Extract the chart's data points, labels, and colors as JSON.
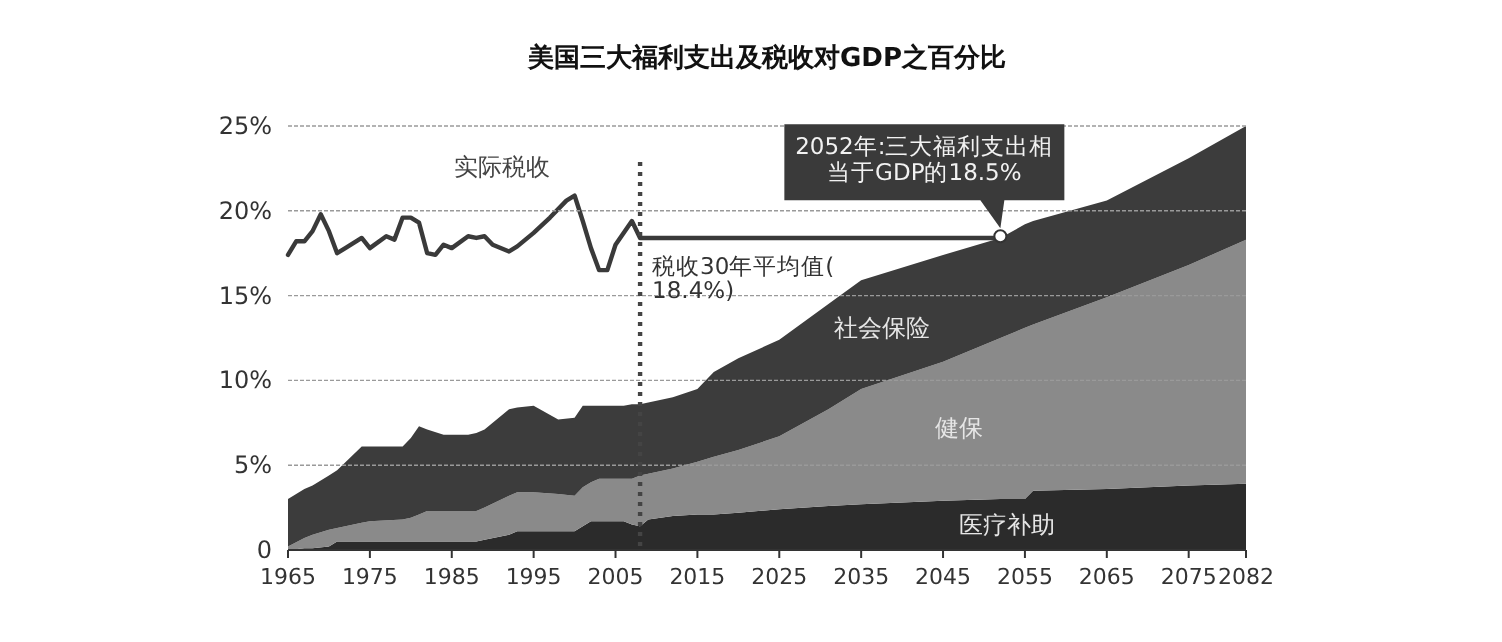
{
  "chart_data": {
    "type": "area",
    "title": "美国三大福利支出及税收对GDP之百分比",
    "x": [
      1965,
      1967,
      1968,
      1970,
      1971,
      1974,
      1975,
      1979,
      1980,
      1981,
      1982,
      1984,
      1987,
      1988,
      1989,
      1992,
      1993,
      1995,
      1998,
      2000,
      2001,
      2002,
      2003,
      2006,
      2007,
      2008,
      2009,
      2012,
      2015,
      2017,
      2020,
      2025,
      2031,
      2035,
      2045,
      2052,
      2055,
      2056,
      2065,
      2075,
      2082
    ],
    "stacked": true,
    "series": [
      {
        "name": "医疗补助",
        "color": "#2b2b2b",
        "values": [
          0,
          0.1,
          0.1,
          0.2,
          0.5,
          0.5,
          0.5,
          0.5,
          0.5,
          0.5,
          0.5,
          0.5,
          0.5,
          0.5,
          0.6,
          0.9,
          1.1,
          1.1,
          1.1,
          1.1,
          1.4,
          1.7,
          1.7,
          1.7,
          1.5,
          1.4,
          1.8,
          2.0,
          2.1,
          2.1,
          2.2,
          2.4,
          2.6,
          2.7,
          2.9,
          3.0,
          3.0,
          3.5,
          3.6,
          3.8,
          3.9
        ]
      },
      {
        "name": "健保",
        "color": "#8a8a8a",
        "values": [
          0.2,
          0.6,
          0.8,
          1.0,
          0.8,
          1.1,
          1.2,
          1.3,
          1.4,
          1.6,
          1.8,
          1.8,
          1.8,
          1.8,
          1.9,
          2.3,
          2.3,
          2.3,
          2.2,
          2.1,
          2.3,
          2.3,
          2.5,
          2.5,
          2.7,
          3.0,
          2.7,
          2.8,
          3.1,
          3.4,
          3.7,
          4.3,
          5.7,
          6.8,
          8.2,
          9.5,
          10.1,
          9.8,
          11.3,
          13.0,
          14.4
        ]
      },
      {
        "name": "社会保险",
        "color": "#3c3c3c",
        "values": [
          2.8,
          2.9,
          2.9,
          3.2,
          3.4,
          4.5,
          4.4,
          4.3,
          4.7,
          5.2,
          4.8,
          4.5,
          4.5,
          4.6,
          4.6,
          5.1,
          5.0,
          5.1,
          4.4,
          4.6,
          4.8,
          4.5,
          4.3,
          4.3,
          4.4,
          4.2,
          4.2,
          4.2,
          4.3,
          5.0,
          5.4,
          5.7,
          6.2,
          6.4,
          6.3,
          5.9,
          6.1,
          6.1,
          5.7,
          6.3,
          6.7
        ]
      },
      {
        "name": "实际税收",
        "type": "line",
        "color": "#3a3a3a",
        "x": [
          1965,
          1966,
          1967,
          1968,
          1969,
          1970,
          1971,
          1972,
          1974,
          1975,
          1977,
          1978,
          1979,
          1980,
          1981,
          1982,
          1983,
          1984,
          1985,
          1987,
          1988,
          1989,
          1990,
          1992,
          1993,
          1995,
          1997,
          1999,
          2000,
          2001,
          2002,
          2003,
          2004,
          2005,
          2007,
          2008,
          2052
        ],
        "values": [
          17.4,
          18.2,
          18.2,
          18.8,
          19.8,
          18.8,
          17.5,
          17.8,
          18.4,
          17.8,
          18.5,
          18.3,
          19.6,
          19.6,
          19.3,
          17.5,
          17.4,
          18.0,
          17.8,
          18.5,
          18.4,
          18.5,
          18.0,
          17.6,
          17.9,
          18.7,
          19.6,
          20.6,
          20.9,
          19.4,
          17.8,
          16.5,
          16.5,
          18.0,
          19.4,
          18.4,
          18.4
        ]
      }
    ],
    "xlim": [
      1965,
      2082
    ],
    "xticks": [
      1965,
      1975,
      1985,
      1995,
      2005,
      2015,
      2025,
      2035,
      2045,
      2055,
      2065,
      2075,
      2082
    ],
    "ylim": [
      0,
      25
    ],
    "yticks": [
      0,
      {
        "value": 5,
        "label": "5%"
      },
      {
        "value": 10,
        "label": "10%"
      },
      {
        "value": 15,
        "label": "15%"
      },
      {
        "value": 20,
        "label": "20%"
      },
      {
        "value": 25,
        "label": "25%"
      }
    ],
    "grid": "y",
    "line_style": "solid",
    "ref_lines": [
      {
        "axis": "x",
        "value": 2008,
        "line_style": "dotted",
        "color": "#444444"
      }
    ],
    "annotations": [
      {
        "text": "2052年:三大福利支出相当于GDP的18.5%",
        "x": 2052,
        "y": 18.5
      },
      {
        "text": "税收30年平均值(18.4%)",
        "x": 2008,
        "y": 18.4
      }
    ]
  }
}
